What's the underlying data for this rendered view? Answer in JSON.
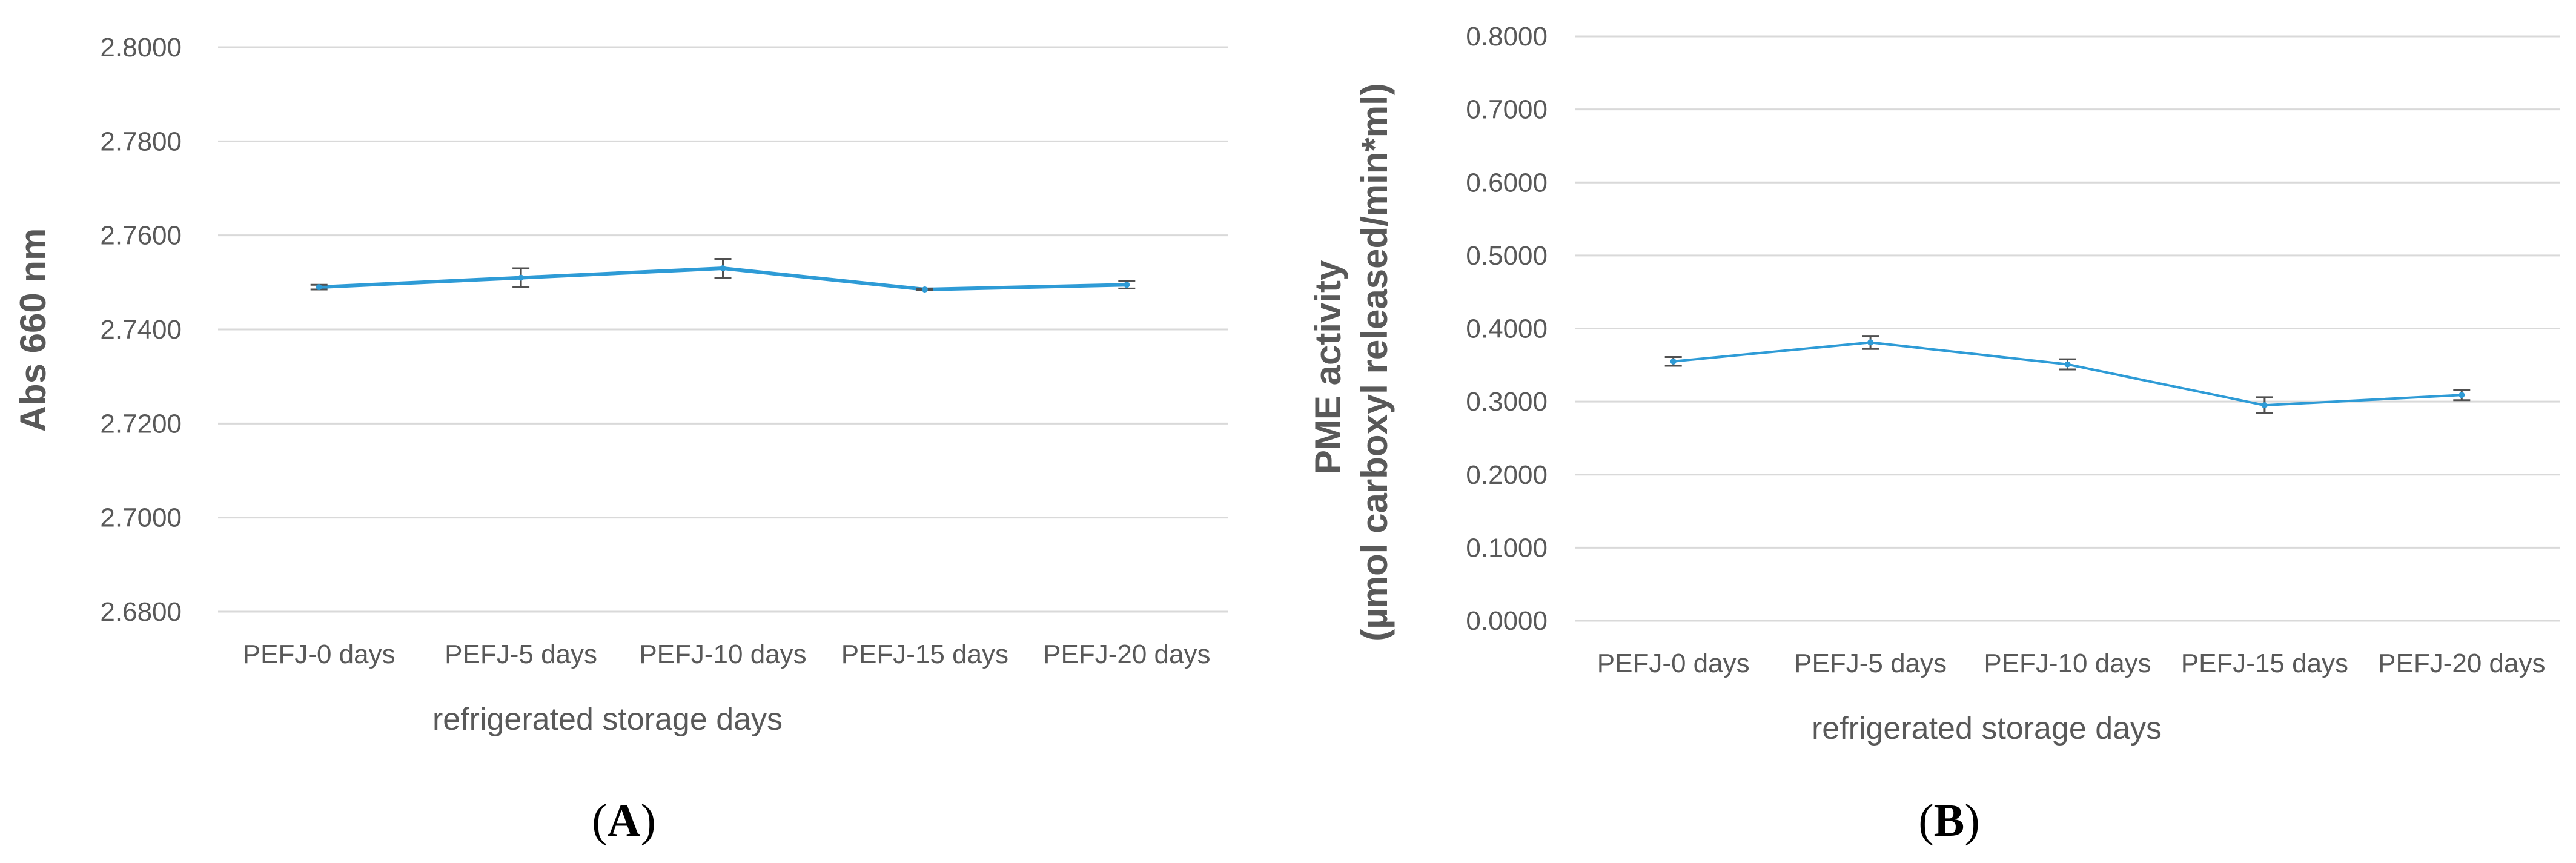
{
  "colors": {
    "series": "#2e9bd6",
    "grid": "#d9d9d9",
    "text": "#595959",
    "error_bar": "#505050"
  },
  "chart_data": [
    {
      "type": "line",
      "panel_label": "A",
      "title": "",
      "xlabel": "refrigerated storage days",
      "ylabel": "Abs 660 nm",
      "ylim": [
        2.68,
        2.8
      ],
      "yticks": [
        "2.6800",
        "2.7000",
        "2.7200",
        "2.7400",
        "2.7600",
        "2.7800",
        "2.8000"
      ],
      "categories": [
        "PEFJ-0 days",
        "PEFJ-5 days",
        "PEFJ-10 days",
        "PEFJ-15 days",
        "PEFJ-20 days"
      ],
      "series": [
        {
          "name": "Abs 660 nm",
          "values": [
            2.749,
            2.751,
            2.753,
            2.7485,
            2.7495
          ],
          "errors": [
            0.0005,
            0.002,
            0.002,
            0.0002,
            0.0008
          ]
        }
      ],
      "grid": true
    },
    {
      "type": "line",
      "panel_label": "B",
      "title": "",
      "xlabel": "refrigerated storage days",
      "ylabel": "PME activity",
      "ylabel_line2": "(µmol carboxyl released/min*ml)",
      "ylim": [
        0.0,
        0.8
      ],
      "yticks": [
        "0.0000",
        "0.1000",
        "0.2000",
        "0.3000",
        "0.4000",
        "0.5000",
        "0.6000",
        "0.7000",
        "0.8000"
      ],
      "categories": [
        "PEFJ-0 days",
        "PEFJ-5 days",
        "PEFJ-10 days",
        "PEFJ-15 days",
        "PEFJ-20 days"
      ],
      "series": [
        {
          "name": "PME activity",
          "values": [
            0.355,
            0.381,
            0.351,
            0.295,
            0.309
          ],
          "errors": [
            0.006,
            0.009,
            0.007,
            0.011,
            0.007
          ]
        }
      ],
      "grid": true
    }
  ]
}
